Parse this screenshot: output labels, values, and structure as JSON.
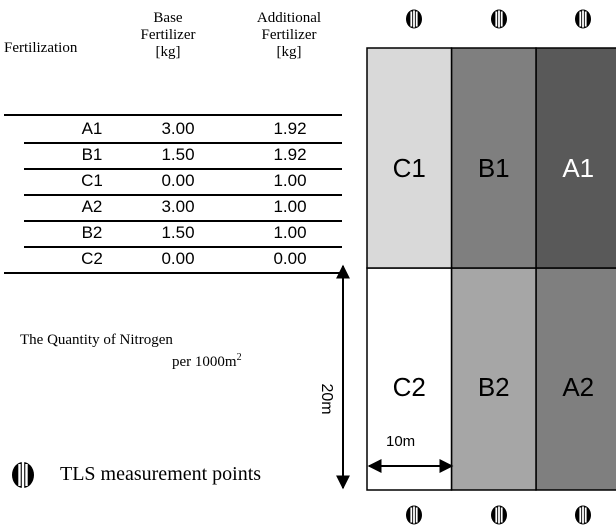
{
  "table": {
    "headers": {
      "fertilization": "Fertilization",
      "base": [
        "Base",
        "Fertilizer",
        "[kg]"
      ],
      "additional": [
        "Additional",
        "Fertilizer",
        "[kg]"
      ]
    },
    "rows": [
      {
        "name": "A1",
        "base": "3.00",
        "additional": "1.92"
      },
      {
        "name": "B1",
        "base": "1.50",
        "additional": "1.92"
      },
      {
        "name": "C1",
        "base": "0.00",
        "additional": "1.00"
      },
      {
        "name": "A2",
        "base": "3.00",
        "additional": "1.00"
      },
      {
        "name": "B2",
        "base": "1.50",
        "additional": "1.00"
      },
      {
        "name": "C2",
        "base": "0.00",
        "additional": "0.00"
      }
    ],
    "note_line1": "The Quantity of Nitrogen",
    "note_line2": "per 1000m",
    "note_sup": "2"
  },
  "plots": {
    "top": [
      {
        "label": "C1",
        "color": "#d9d9d9",
        "text_color": "#000000"
      },
      {
        "label": "B1",
        "color": "#7f7f7f",
        "text_color": "#000000"
      },
      {
        "label": "A1",
        "color": "#595959",
        "text_color": "#ffffff"
      }
    ],
    "bottom": [
      {
        "label": "C2",
        "color": "#ffffff",
        "text_color": "#000000"
      },
      {
        "label": "B2",
        "color": "#a6a6a6",
        "text_color": "#000000"
      },
      {
        "label": "A2",
        "color": "#7f7f7f",
        "text_color": "#000000"
      }
    ]
  },
  "dimensions": {
    "vertical": "20m",
    "horizontal": "10m"
  },
  "legend": {
    "label": "TLS measurement points",
    "icon": "tls-point-icon"
  }
}
